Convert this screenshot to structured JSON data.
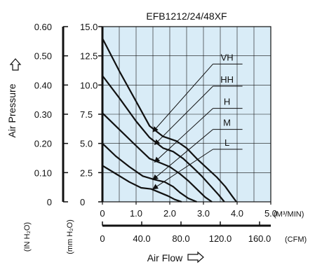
{
  "chart_data": {
    "type": "line",
    "title": "EFB1212/24/48XF",
    "xlabel": "Air Flow",
    "x_unit_top": "(M³/MIN)",
    "x_unit_bottom": "(CFM)",
    "ylabel": "Air Pressure",
    "y_unit_inner": "(mm H₂O)",
    "y_unit_outer": "(IN H₂O)",
    "xlim": [
      0,
      5.0
    ],
    "ylim": [
      0,
      15.0
    ],
    "x_ticks": [
      "0",
      "1.0",
      "2.0",
      "3.0",
      "4.0",
      "5.0"
    ],
    "x_ticks_cfm": [
      "0",
      "40.0",
      "80.0",
      "120.0",
      "160.0"
    ],
    "y_ticks_mm": [
      "0",
      "2.5",
      "5.0",
      "7.5",
      "10.0",
      "12.5",
      "15.0"
    ],
    "y_ticks_in": [
      "0",
      "0.10",
      "0.20",
      "0.30",
      "0.40",
      "0.50",
      "0.60"
    ],
    "grid": true,
    "background": "#d9ecf7",
    "series": [
      {
        "name": "VH",
        "x": [
          0,
          0.5,
          1.0,
          1.4,
          1.8,
          2.2,
          2.5,
          2.8,
          3.1,
          3.4,
          3.65,
          3.85,
          3.98
        ],
        "y": [
          14.0,
          11.2,
          8.6,
          6.5,
          5.6,
          5.2,
          4.6,
          3.7,
          2.9,
          2.1,
          1.3,
          0.5,
          0.0
        ]
      },
      {
        "name": "HH",
        "x": [
          0,
          0.5,
          1.0,
          1.4,
          1.8,
          2.1,
          2.4,
          2.7,
          2.95,
          3.2,
          3.45,
          3.62
        ],
        "y": [
          10.8,
          8.9,
          6.9,
          5.5,
          4.6,
          4.3,
          3.7,
          2.9,
          2.2,
          1.4,
          0.6,
          0.0
        ]
      },
      {
        "name": "H",
        "x": [
          0,
          0.5,
          1.0,
          1.4,
          1.75,
          2.0,
          2.3,
          2.55,
          2.8,
          3.05,
          3.25
        ],
        "y": [
          7.6,
          6.2,
          4.8,
          3.7,
          3.3,
          3.0,
          2.4,
          1.8,
          1.1,
          0.4,
          0.0
        ]
      },
      {
        "name": "M",
        "x": [
          0,
          0.4,
          0.8,
          1.2,
          1.55,
          1.85,
          2.1,
          2.3,
          2.55,
          2.8
        ],
        "y": [
          5.0,
          3.9,
          3.0,
          2.2,
          1.9,
          1.7,
          1.3,
          0.8,
          0.3,
          0.0
        ]
      },
      {
        "name": "L",
        "x": [
          0,
          0.4,
          0.8,
          1.15,
          1.45,
          1.7,
          1.95,
          2.15,
          2.35
        ],
        "y": [
          3.1,
          2.4,
          1.7,
          1.2,
          1.1,
          0.8,
          0.5,
          0.2,
          0.0
        ]
      }
    ],
    "annotations": [
      {
        "label": "VH",
        "label_x": 3.45,
        "label_y": 11.8,
        "tip_x": 1.5,
        "tip_y": 6.0
      },
      {
        "label": "HH",
        "label_x": 3.45,
        "label_y": 9.9,
        "tip_x": 1.55,
        "tip_y": 4.9
      },
      {
        "label": "H",
        "label_x": 3.45,
        "label_y": 8.0,
        "tip_x": 1.55,
        "tip_y": 3.4
      },
      {
        "label": "M",
        "label_x": 3.45,
        "label_y": 6.2,
        "tip_x": 1.5,
        "tip_y": 1.9
      },
      {
        "label": "L",
        "label_x": 3.45,
        "label_y": 4.5,
        "tip_x": 1.5,
        "tip_y": 1.1
      }
    ]
  }
}
